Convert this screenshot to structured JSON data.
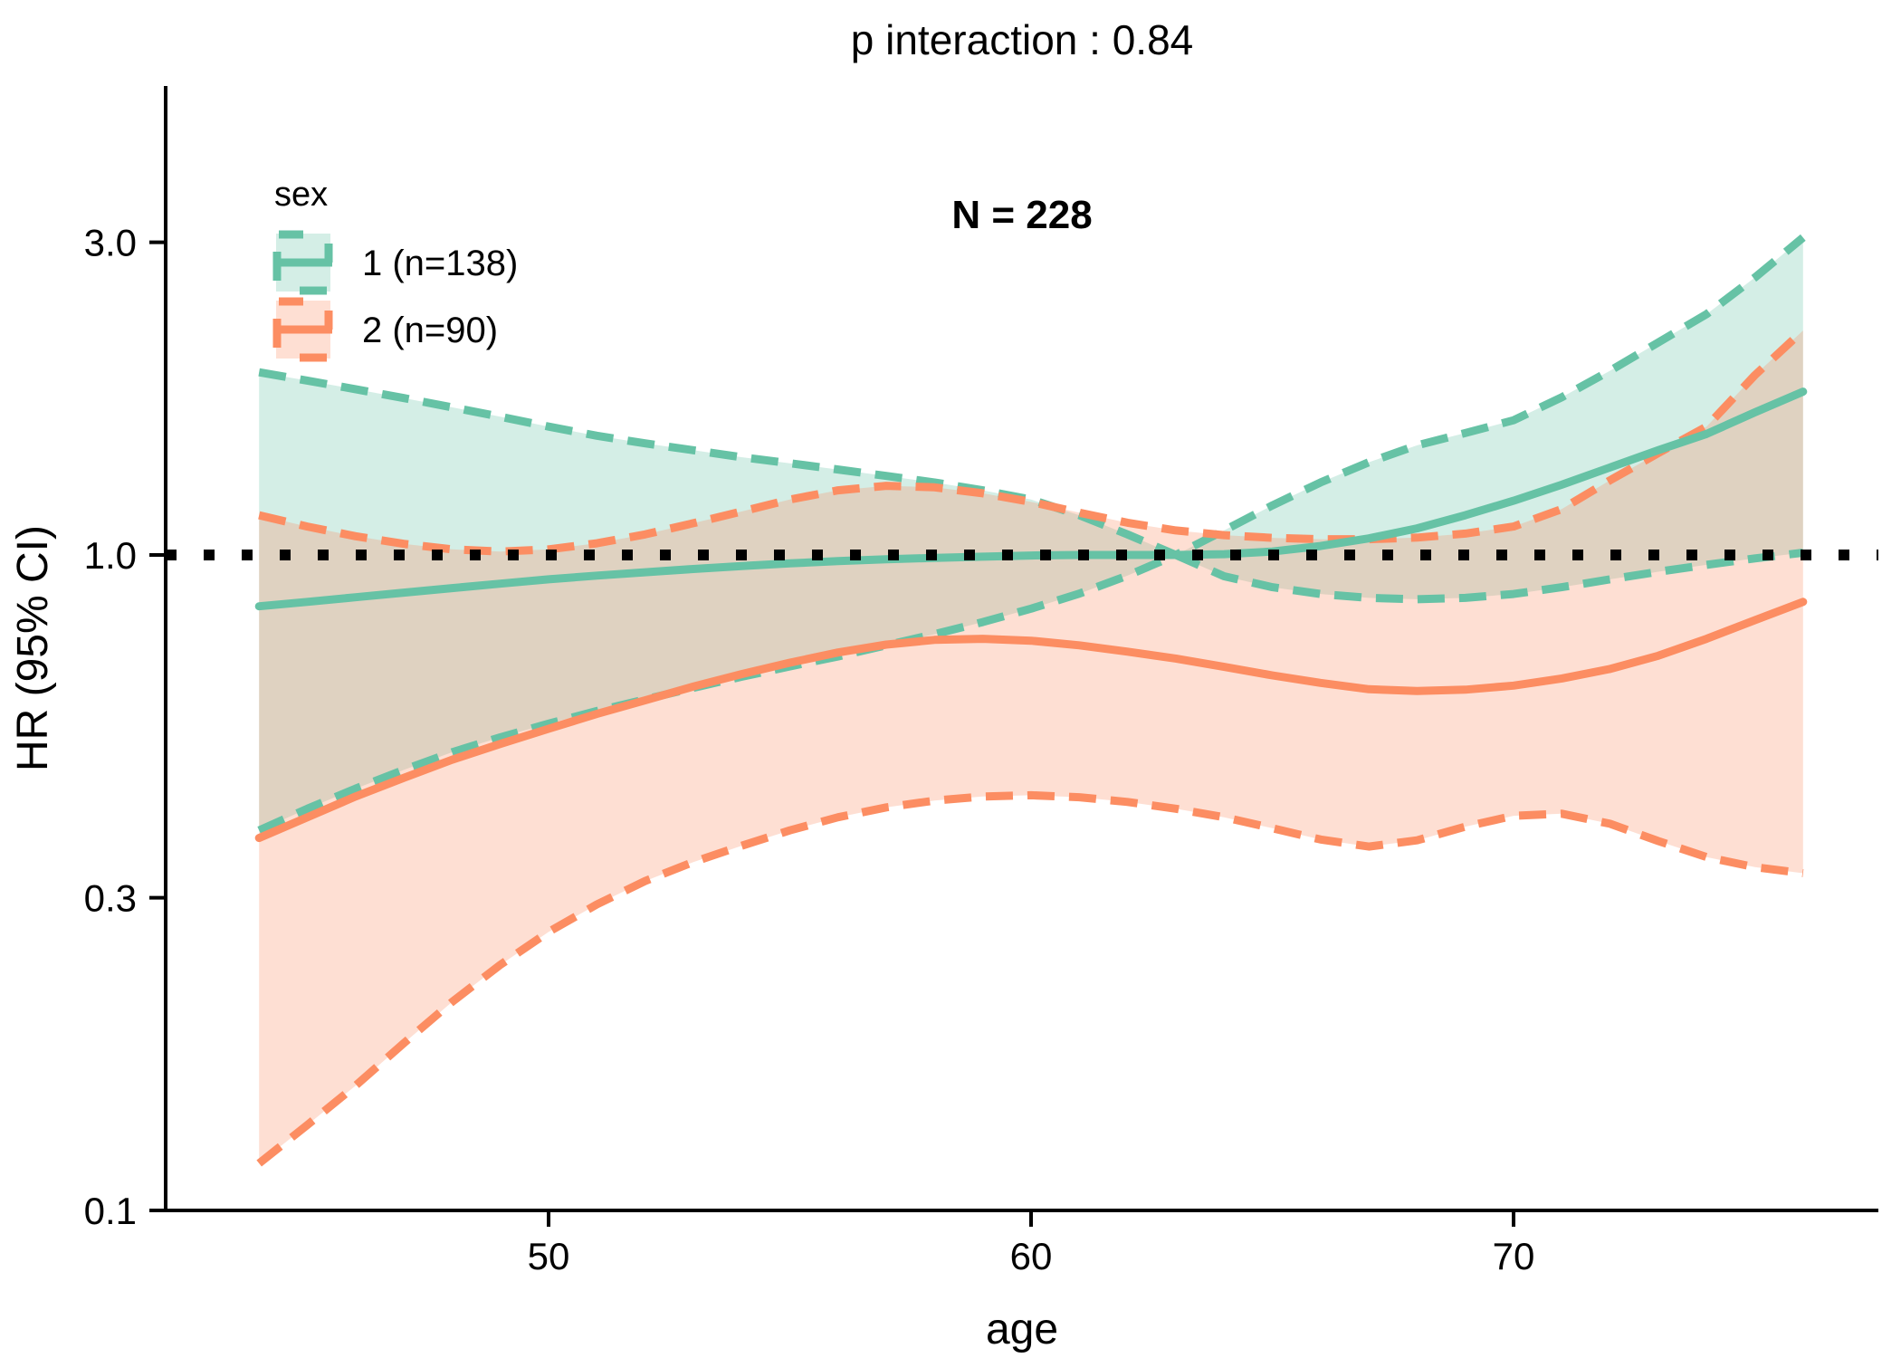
{
  "title": "p interaction : 0.84",
  "annotation": "N = 228",
  "legend": {
    "title": "sex",
    "position": "top-left-inside",
    "items": [
      {
        "label": "1 (n=138)",
        "color": "#66C2A5",
        "n": 138
      },
      {
        "label": "2 (n=90)",
        "color": "#FC8D62",
        "n": 90
      }
    ]
  },
  "reference_line": {
    "y": 1.0,
    "style": "dotted",
    "color": "#000000"
  },
  "colors": {
    "sex1_line": "#66C2A5",
    "sex2_line": "#FC8D62",
    "sex1_ribbon_overlay_white": "#DCF0E8",
    "sex2_ribbon_overlay_white": "#FEE4D9",
    "axis": "#000000"
  },
  "chart_data": {
    "type": "line",
    "title": "p interaction : 0.84",
    "subtitle": "N = 228",
    "xlabel": "age",
    "ylabel": "HR (95% CI)",
    "y_scale": "log10",
    "xlim": [
      42,
      77.5
    ],
    "ylim": [
      0.1,
      5.2
    ],
    "grid": false,
    "x_ticks": [
      50,
      60,
      70
    ],
    "y_ticks": [
      {
        "v": 3.0,
        "label": "3.0"
      },
      {
        "v": 1.0,
        "label": "1.0"
      },
      {
        "v": 0.3,
        "label": "0.3"
      },
      {
        "v": 0.1,
        "label": "0.1"
      }
    ],
    "reference_hr": 1.0,
    "x": [
      44,
      45,
      46,
      47,
      48,
      49,
      50,
      51,
      52,
      53,
      54,
      55,
      56,
      57,
      58,
      59,
      60,
      61,
      62,
      63,
      64,
      65,
      66,
      67,
      68,
      69,
      70,
      71,
      72,
      73,
      74,
      75,
      76
    ],
    "series": [
      {
        "id": "sex1",
        "name": "1 (n=138)",
        "color": "#66C2A5",
        "fit": [
          0.835,
          0.848,
          0.862,
          0.876,
          0.89,
          0.904,
          0.918,
          0.93,
          0.941,
          0.952,
          0.962,
          0.971,
          0.979,
          0.985,
          0.99,
          0.994,
          0.998,
          1.0,
          1.0,
          1.0,
          1.003,
          1.012,
          1.032,
          1.06,
          1.098,
          1.15,
          1.21,
          1.28,
          1.36,
          1.445,
          1.53,
          1.65,
          1.775
        ],
        "upper": [
          1.9,
          1.845,
          1.79,
          1.735,
          1.68,
          1.625,
          1.57,
          1.52,
          1.48,
          1.445,
          1.41,
          1.38,
          1.35,
          1.32,
          1.29,
          1.255,
          1.215,
          1.15,
          1.075,
          1.0,
          1.09,
          1.19,
          1.29,
          1.385,
          1.47,
          1.535,
          1.605,
          1.74,
          1.91,
          2.11,
          2.33,
          2.65,
          3.05
        ],
        "lower": [
          0.38,
          0.41,
          0.44,
          0.47,
          0.5,
          0.527,
          0.553,
          0.578,
          0.602,
          0.627,
          0.652,
          0.676,
          0.7,
          0.728,
          0.757,
          0.79,
          0.828,
          0.873,
          0.93,
          1.0,
          0.928,
          0.893,
          0.872,
          0.86,
          0.856,
          0.86,
          0.872,
          0.893,
          0.918,
          0.943,
          0.966,
          0.988,
          1.008
        ]
      },
      {
        "id": "sex2",
        "name": "2 (n=90)",
        "color": "#FC8D62",
        "fit": [
          0.37,
          0.398,
          0.428,
          0.457,
          0.487,
          0.515,
          0.543,
          0.572,
          0.6,
          0.63,
          0.658,
          0.685,
          0.71,
          0.73,
          0.742,
          0.745,
          0.74,
          0.728,
          0.712,
          0.695,
          0.675,
          0.655,
          0.638,
          0.624,
          0.62,
          0.623,
          0.632,
          0.648,
          0.67,
          0.702,
          0.745,
          0.795,
          0.848
        ],
        "upper": [
          1.15,
          1.105,
          1.068,
          1.04,
          1.02,
          1.012,
          1.02,
          1.042,
          1.075,
          1.118,
          1.165,
          1.215,
          1.255,
          1.275,
          1.268,
          1.242,
          1.205,
          1.16,
          1.12,
          1.09,
          1.072,
          1.062,
          1.057,
          1.057,
          1.063,
          1.078,
          1.105,
          1.175,
          1.3,
          1.43,
          1.57,
          1.88,
          2.2
        ],
        "lower": [
          0.118,
          0.135,
          0.155,
          0.18,
          0.208,
          0.237,
          0.266,
          0.293,
          0.318,
          0.34,
          0.36,
          0.38,
          0.398,
          0.412,
          0.422,
          0.428,
          0.43,
          0.427,
          0.42,
          0.41,
          0.398,
          0.383,
          0.368,
          0.359,
          0.367,
          0.385,
          0.4,
          0.403,
          0.389,
          0.366,
          0.346,
          0.334,
          0.327
        ]
      }
    ]
  }
}
